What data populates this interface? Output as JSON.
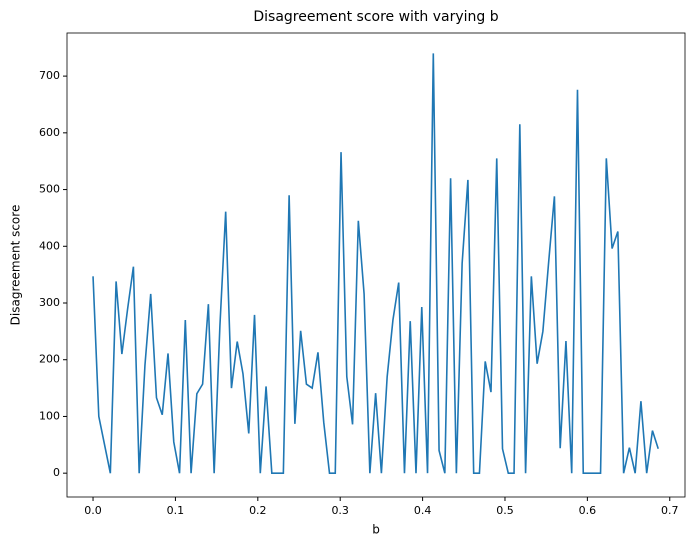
{
  "chart_data": {
    "type": "line",
    "title": "Disagreement score with varying b",
    "xlabel": "b",
    "ylabel": "Disagreement score",
    "x": [
      0,
      0.007,
      0.014,
      0.021,
      0.028,
      0.035,
      0.042,
      0.049,
      0.056,
      0.063,
      0.07,
      0.077,
      0.084,
      0.091,
      0.098,
      0.105,
      0.112,
      0.119,
      0.126,
      0.133,
      0.14,
      0.147,
      0.154,
      0.161,
      0.168,
      0.175,
      0.182,
      0.189,
      0.196,
      0.203,
      0.21,
      0.217,
      0.224,
      0.231,
      0.238,
      0.245,
      0.252,
      0.259,
      0.266,
      0.273,
      0.28,
      0.287,
      0.294,
      0.301,
      0.308,
      0.315,
      0.322,
      0.329,
      0.336,
      0.343,
      0.35,
      0.357,
      0.364,
      0.371,
      0.378,
      0.385,
      0.392,
      0.399,
      0.406,
      0.413,
      0.42,
      0.427,
      0.434,
      0.441,
      0.448,
      0.455,
      0.462,
      0.469,
      0.476,
      0.483,
      0.49,
      0.497,
      0.504,
      0.511,
      0.518,
      0.525,
      0.532,
      0.539,
      0.546,
      0.553,
      0.56,
      0.567,
      0.574,
      0.581,
      0.588,
      0.595,
      0.602,
      0.609,
      0.616,
      0.623,
      0.63,
      0.637,
      0.644,
      0.651,
      0.658,
      0.665,
      0.672,
      0.679,
      0.686
    ],
    "series": [
      {
        "color": "#1f77b4",
        "values": [
          347,
          100,
          50,
          0,
          338,
          210,
          290,
          364,
          0,
          190,
          316,
          133,
          103,
          211,
          55,
          0,
          270,
          0,
          140,
          157,
          298,
          0,
          260,
          461,
          150,
          232,
          175,
          70,
          279,
          0,
          153,
          0,
          0,
          0,
          490,
          87,
          251,
          157,
          150,
          213,
          90,
          0,
          0,
          566,
          170,
          86,
          445,
          316,
          0,
          141,
          0,
          170,
          270,
          336,
          0,
          268,
          0,
          293,
          0,
          740,
          40,
          0,
          520,
          0,
          370,
          517,
          0,
          0,
          197,
          143,
          555,
          43,
          0,
          0,
          615,
          0,
          347,
          193,
          250,
          372,
          488,
          44,
          233,
          0,
          676,
          0,
          0,
          0,
          0,
          555,
          396,
          426,
          0,
          45,
          0,
          127,
          0,
          75,
          43
        ]
      }
    ],
    "xlim": [
      -0.0316,
      0.7185
    ],
    "ylim": [
      -42,
      776
    ],
    "xticks": [
      {
        "value": 0,
        "label": "0.0"
      },
      0.1,
      0.2,
      0.3,
      0.4,
      0.5,
      0.6,
      0.7
    ],
    "yticks": [
      0,
      100,
      200,
      300,
      400,
      500,
      600,
      700
    ]
  }
}
